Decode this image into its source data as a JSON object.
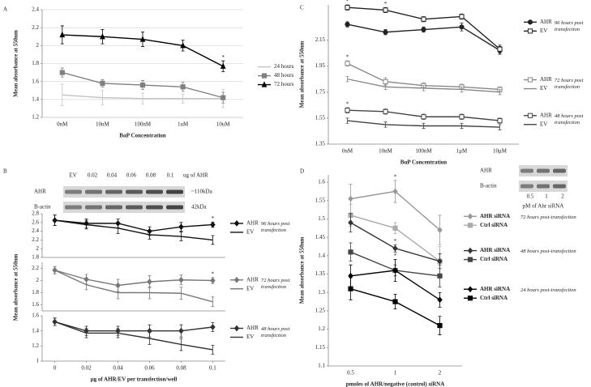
{
  "chart_data": [
    {
      "type": "line",
      "panel_label": "A",
      "ylabel": "Mean absorbance at 550nm",
      "xlabel": "BαP Concentration",
      "categories": [
        "0nM",
        "10nM",
        "100nM",
        "1uM",
        "10uM"
      ],
      "grid": true,
      "plots": [
        {
          "ylim": [
            1.2,
            2.4
          ],
          "yticks": [
            1.2,
            1.4,
            1.6,
            1.8,
            2,
            2.2,
            2.4
          ],
          "groups": [
            {
              "series": [
                {
                  "name": "24 hours",
                  "color": "#c4c4c4",
                  "marker": "none",
                  "values": [
                    1.45,
                    1.42,
                    1.41,
                    1.41,
                    1.41
                  ],
                  "errors": [
                    0.12,
                    0.08,
                    0.06,
                    0.05,
                    0.1
                  ]
                },
                {
                  "name": "48 hours",
                  "color": "#808080",
                  "marker": "square",
                  "values": [
                    1.7,
                    1.58,
                    1.56,
                    1.54,
                    1.42
                  ],
                  "errors": [
                    0.05,
                    0.04,
                    0.05,
                    0.05,
                    0.06
                  ]
                },
                {
                  "name": "72 hours",
                  "color": "#000000",
                  "marker": "triangle",
                  "values": [
                    2.12,
                    2.1,
                    2.07,
                    2.0,
                    1.77
                  ],
                  "errors": [
                    0.1,
                    0.08,
                    0.08,
                    0.06,
                    0.06
                  ],
                  "significance": [
                    null,
                    null,
                    null,
                    null,
                    "*"
                  ]
                }
              ]
            }
          ]
        }
      ]
    },
    {
      "type": "line",
      "panel_label": "B",
      "ylabel": "Mean absorbance at 550nm",
      "xlabel": "μg of AHR/EV per transfection/well",
      "x": [
        0,
        0.02,
        0.04,
        0.06,
        0.08,
        0.1
      ],
      "xlim": [
        -0.008,
        0.108
      ],
      "xticks": [
        0,
        0.02,
        0.04,
        0.06,
        0.08,
        0.1
      ],
      "inset": {
        "column_labels": [
          "EV",
          "0.02",
          "0.04",
          "0.06",
          "0.08",
          "0.1"
        ],
        "unit": "ug of AHR",
        "rows": [
          {
            "name": "AHR",
            "size": "~110kDa"
          },
          {
            "name": "B-actin",
            "size": "42kDa"
          }
        ]
      },
      "plots": [
        {
          "ylim": [
            1.8,
            2.8
          ],
          "yticks": [
            1.8,
            2,
            2.2,
            2.4,
            2.6,
            2.8
          ],
          "groups": [
            {
              "label": "96 hours post transfection",
              "series": [
                {
                  "name": "AHR",
                  "color": "#111111",
                  "marker": "diamond",
                  "values": [
                    2.65,
                    2.58,
                    2.58,
                    2.4,
                    2.5,
                    2.55
                  ],
                  "errors": [
                    0.12,
                    0.1,
                    0.1,
                    0.1,
                    0.1,
                    0.06
                  ],
                  "significance": [
                    null,
                    null,
                    null,
                    null,
                    null,
                    "*"
                  ]
                },
                {
                  "name": "EV",
                  "color": "#111111",
                  "marker": "none",
                  "values": [
                    2.65,
                    2.55,
                    2.47,
                    2.32,
                    2.28,
                    2.2
                  ],
                  "errors": [
                    0.12,
                    0.1,
                    0.12,
                    0.1,
                    0.1,
                    0.1
                  ]
                }
              ]
            }
          ]
        },
        {
          "ylim": [
            1.5,
            2.3
          ],
          "yticks": [
            1.6,
            1.8,
            2,
            2.2
          ],
          "groups": [
            {
              "label": "72 hours post transfection",
              "series": [
                {
                  "name": "AHR",
                  "color": "#777777",
                  "marker": "diamond",
                  "values": [
                    2.17,
                    2.02,
                    1.92,
                    1.98,
                    2.01,
                    2.0
                  ],
                  "errors": [
                    0.06,
                    0.08,
                    0.1,
                    0.1,
                    0.08,
                    0.05
                  ],
                  "significance": [
                    null,
                    null,
                    null,
                    null,
                    null,
                    "*"
                  ]
                },
                {
                  "name": "EV",
                  "color": "#777777",
                  "marker": "none",
                  "values": [
                    2.17,
                    1.93,
                    1.8,
                    1.8,
                    1.79,
                    1.65
                  ],
                  "errors": [
                    0.06,
                    0.08,
                    0.1,
                    0.1,
                    0.1,
                    0.08
                  ]
                }
              ]
            }
          ]
        },
        {
          "ylim": [
            1,
            1.6
          ],
          "yticks": [
            1,
            1.2,
            1.4,
            1.6
          ],
          "groups": [
            {
              "label": "48 hours post transfection",
              "series": [
                {
                  "name": "AHR",
                  "color": "#333333",
                  "marker": "diamond",
                  "values": [
                    1.52,
                    1.4,
                    1.4,
                    1.4,
                    1.4,
                    1.45
                  ],
                  "errors": [
                    0.05,
                    0.06,
                    0.06,
                    0.08,
                    0.08,
                    0.06
                  ]
                },
                {
                  "name": "EV",
                  "color": "#333333",
                  "marker": "none",
                  "values": [
                    1.52,
                    1.37,
                    1.37,
                    1.3,
                    1.22,
                    1.15
                  ],
                  "errors": [
                    0.05,
                    0.06,
                    0.06,
                    0.08,
                    0.08,
                    0.06
                  ]
                }
              ]
            }
          ]
        }
      ]
    },
    {
      "type": "line",
      "panel_label": "C",
      "ylabel": "Mean absorbance at 550nm",
      "xlabel": "BαP Concentration",
      "categories": [
        "0nM",
        "10nM",
        "100nM",
        "1μM",
        "10μM"
      ],
      "plots": [
        {
          "ylim": [
            1.35,
            2.42
          ],
          "yticks": [
            1.35,
            1.55,
            1.75,
            1.95,
            2.15
          ],
          "groups": [
            {
              "label": "96 hours post transfection",
              "series": [
                {
                  "name": "AHR",
                  "color": "#222222",
                  "marker": "circle",
                  "values": [
                    2.27,
                    2.21,
                    2.23,
                    2.25,
                    2.07
                  ],
                  "errors": [
                    0.02,
                    0.02,
                    0.02,
                    0.03,
                    0.03
                  ]
                },
                {
                  "name": "EV",
                  "color": "#222222",
                  "marker": "open-square",
                  "values": [
                    2.4,
                    2.38,
                    2.31,
                    2.33,
                    2.08
                  ],
                  "errors": [
                    0.02,
                    0.02,
                    0.02,
                    0.02,
                    0.03
                  ],
                  "significance": [
                    "*",
                    "*",
                    null,
                    null,
                    null
                  ]
                }
              ]
            },
            {
              "label": "72 hours post transfection",
              "series": [
                {
                  "name": "AHR",
                  "color": "#888888",
                  "marker": "open-square",
                  "values": [
                    1.97,
                    1.83,
                    1.8,
                    1.79,
                    1.77
                  ],
                  "errors": [
                    0.02,
                    0.03,
                    0.02,
                    0.02,
                    0.02
                  ],
                  "significance": [
                    "*",
                    null,
                    null,
                    null,
                    null
                  ]
                },
                {
                  "name": "EV",
                  "color": "#888888",
                  "marker": "none",
                  "values": [
                    1.85,
                    1.79,
                    1.78,
                    1.77,
                    1.75
                  ],
                  "errors": [
                    0.02,
                    0.02,
                    0.02,
                    0.02,
                    0.02
                  ]
                }
              ]
            },
            {
              "label": "48 hours post transfection",
              "series": [
                {
                  "name": "AHR",
                  "color": "#444444",
                  "marker": "open-square",
                  "values": [
                    1.61,
                    1.6,
                    1.56,
                    1.56,
                    1.53
                  ],
                  "errors": [
                    0.02,
                    0.02,
                    0.02,
                    0.02,
                    0.02
                  ],
                  "significance": [
                    "*",
                    null,
                    null,
                    null,
                    null
                  ]
                },
                {
                  "name": "EV",
                  "color": "#444444",
                  "marker": "none",
                  "values": [
                    1.53,
                    1.5,
                    1.49,
                    1.49,
                    1.48
                  ],
                  "errors": [
                    0.02,
                    0.02,
                    0.02,
                    0.02,
                    0.02
                  ]
                }
              ]
            }
          ]
        }
      ]
    },
    {
      "type": "line",
      "panel_label": "D",
      "ylabel": "Mean absorbance at 550nm",
      "xlabel": "pmoles of AHR/negative (control) siRNA",
      "categories": [
        "0.5",
        "1",
        "2"
      ],
      "inset": {
        "column_labels": [
          "0.5",
          "1",
          "2"
        ],
        "caption": "pM of Ahr siRNA",
        "rows": [
          {
            "name": "AHR"
          },
          {
            "name": "B-actin"
          }
        ]
      },
      "plots": [
        {
          "ylim": [
            1.1,
            1.62
          ],
          "yticks": [
            1.1,
            1.15,
            1.2,
            1.25,
            1.3,
            1.35,
            1.4,
            1.45,
            1.5,
            1.55,
            1.6
          ],
          "groups": [
            {
              "label": "72 hours post-transfection",
              "series": [
                {
                  "name": "AHR siRNA",
                  "color": "#999999",
                  "marker": "diamond",
                  "values": [
                    1.555,
                    1.575,
                    1.47
                  ],
                  "errors": [
                    0.04,
                    0.03,
                    0.04
                  ],
                  "significance": [
                    null,
                    "*",
                    null
                  ]
                },
                {
                  "name": "Ctrl siRNA",
                  "color": "#aaaaaa",
                  "marker": "square",
                  "values": [
                    1.51,
                    1.475,
                    1.385
                  ],
                  "errors": [
                    0.03,
                    0.015,
                    0.04
                  ]
                }
              ]
            },
            {
              "label": "48 hours post-transfection",
              "series": [
                {
                  "name": "AHR siRNA",
                  "color": "#333333",
                  "marker": "diamond",
                  "values": [
                    1.49,
                    1.42,
                    1.385
                  ],
                  "errors": [
                    0.025,
                    0.01,
                    0.02
                  ],
                  "significance": [
                    null,
                    "*",
                    null
                  ]
                },
                {
                  "name": "Ctrl siRNA",
                  "color": "#444444",
                  "marker": "square",
                  "values": [
                    1.41,
                    1.36,
                    1.345
                  ],
                  "errors": [
                    0.025,
                    0.015,
                    0.03
                  ]
                }
              ]
            },
            {
              "label": "24 hours post-transfection",
              "series": [
                {
                  "name": "AHR siRNA",
                  "color": "#000000",
                  "marker": "diamond",
                  "values": [
                    1.345,
                    1.36,
                    1.28
                  ],
                  "errors": [
                    0.03,
                    0.03,
                    0.02
                  ],
                  "significance": [
                    null,
                    "*",
                    null
                  ]
                },
                {
                  "name": "Ctrl siRNA",
                  "color": "#000000",
                  "marker": "square",
                  "values": [
                    1.31,
                    1.275,
                    1.21
                  ],
                  "errors": [
                    0.03,
                    0.02,
                    0.025
                  ]
                }
              ]
            }
          ]
        }
      ]
    }
  ]
}
